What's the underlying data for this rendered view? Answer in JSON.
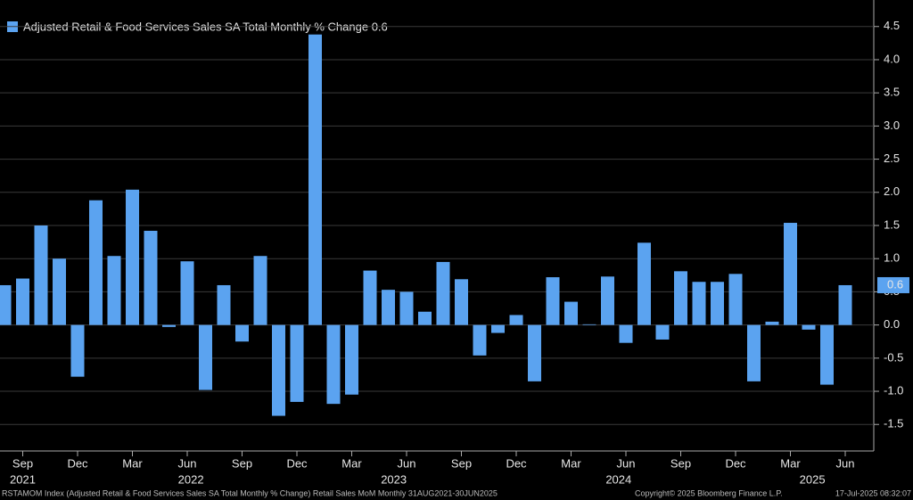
{
  "chart_data": {
    "type": "bar",
    "categories": [
      null,
      "Sep",
      null,
      null,
      "Dec",
      null,
      null,
      "Mar",
      null,
      null,
      "Jun",
      null,
      null,
      "Sep",
      null,
      null,
      "Dec",
      null,
      null,
      "Mar",
      null,
      null,
      "Jun",
      null,
      null,
      "Sep",
      null,
      null,
      "Dec",
      null,
      null,
      "Mar",
      null,
      null,
      "Jun",
      null,
      null,
      "Sep",
      null,
      null,
      "Dec",
      null,
      null,
      "Mar",
      null,
      null,
      "Jun"
    ],
    "year_labels": [
      "2021",
      "2022",
      "2023",
      "2024",
      "2025"
    ],
    "series": [
      {
        "name": "Adjusted Retail & Food Services Sales SA Total Monthly % Change 0.6",
        "color": "#5ba3f0",
        "values": [
          0.6,
          0.7,
          1.5,
          1.0,
          -0.78,
          1.88,
          1.04,
          2.04,
          1.42,
          -0.03,
          0.96,
          -0.98,
          0.6,
          -0.25,
          1.04,
          -1.37,
          -1.16,
          4.38,
          -1.19,
          -1.05,
          0.82,
          0.53,
          0.5,
          0.2,
          0.95,
          0.69,
          -0.46,
          -0.12,
          0.15,
          -0.85,
          0.72,
          0.35,
          0.01,
          0.73,
          -0.27,
          1.24,
          -0.22,
          0.81,
          0.65,
          0.65,
          0.77,
          -0.85,
          0.05,
          1.54,
          -0.07,
          -0.9,
          0.6
        ]
      }
    ],
    "ylim": [
      -1.9,
      4.9
    ],
    "yticks": [
      -1.5,
      {
        "value": -1,
        "label": "-1.0"
      },
      -0.5,
      {
        "value": 0,
        "label": "0.0"
      },
      0.5,
      {
        "value": 1,
        "label": "1.0"
      },
      1.5,
      {
        "value": 2,
        "label": "2.0"
      },
      2.5,
      {
        "value": 3,
        "label": "3.0"
      },
      3.5,
      {
        "value": 4,
        "label": "4.0"
      },
      4.5
    ],
    "grid": true,
    "footer": {
      "source": "RSTAMOM Index (Adjusted Retail & Food Services Sales SA Total Monthly % Change) Retail Sales MoM  Monthly 31AUG2021-30JUN2025",
      "copyright": "Copyright© 2025 Bloomberg Finance L.P.",
      "timestamp": "17-Jul-2025 08:32:07"
    }
  }
}
